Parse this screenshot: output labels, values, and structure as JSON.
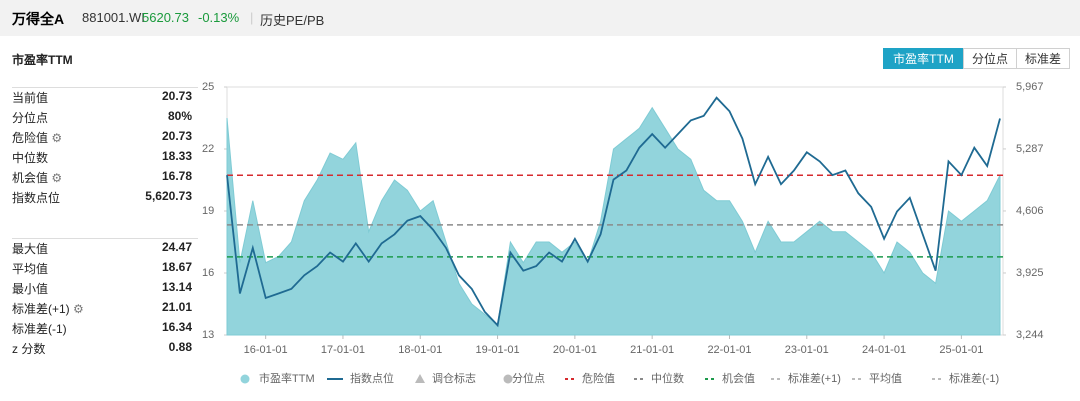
{
  "header": {
    "name": "万得全A",
    "code": "881001.WI",
    "price": "5620.73",
    "change": "-0.13%",
    "tab": "历史PE/PB"
  },
  "panel_title": "市盈率TTM",
  "tabs": [
    "市盈率TTM",
    "分位点",
    "标准差"
  ],
  "stats": [
    [
      [
        "当前值",
        "20.73"
      ],
      [
        "分位点",
        "80%"
      ],
      [
        "危险值",
        "20.73"
      ],
      [
        "中位数",
        "18.33"
      ],
      [
        "机会值",
        "16.78"
      ],
      [
        "指数点位",
        "5,620.73"
      ]
    ],
    [
      [
        "最大值",
        "24.47"
      ],
      [
        "平均值",
        "18.67"
      ],
      [
        "最小值",
        "13.14"
      ],
      [
        "标准差(+1)",
        "21.01"
      ],
      [
        "标准差(-1)",
        "16.34"
      ],
      [
        "z 分数",
        "0.88"
      ]
    ]
  ],
  "chart_data": {
    "type": "area-line",
    "x": [
      "15-07-01",
      "15-09-01",
      "15-11-01",
      "16-01-01",
      "16-03-01",
      "16-05-01",
      "16-07-01",
      "16-09-01",
      "16-11-01",
      "17-01-01",
      "17-03-01",
      "17-05-01",
      "17-07-01",
      "17-09-01",
      "17-11-01",
      "18-01-01",
      "18-03-01",
      "18-05-01",
      "18-07-01",
      "18-09-01",
      "18-11-01",
      "19-01-01",
      "19-03-01",
      "19-05-01",
      "19-07-01",
      "19-09-01",
      "19-11-01",
      "20-01-01",
      "20-03-01",
      "20-05-01",
      "20-07-01",
      "20-09-01",
      "20-11-01",
      "21-01-01",
      "21-03-01",
      "21-05-01",
      "21-07-01",
      "21-09-01",
      "21-11-01",
      "22-01-01",
      "22-03-01",
      "22-05-01",
      "22-07-01",
      "22-09-01",
      "22-11-01",
      "23-01-01",
      "23-03-01",
      "23-05-01",
      "23-07-01",
      "23-09-01",
      "23-11-01",
      "24-01-01",
      "24-03-01",
      "24-05-01",
      "24-07-01",
      "24-09-01",
      "24-11-01",
      "25-01-01",
      "25-03-01",
      "25-05-01",
      "25-07-01"
    ],
    "series": [
      {
        "name": "市盈率TTM",
        "color": "#92d4dc",
        "values": [
          23.5,
          16.5,
          19.5,
          16.5,
          16.8,
          17.5,
          19.5,
          20.5,
          21.8,
          21.5,
          22.3,
          18.0,
          19.5,
          20.5,
          20.0,
          19.0,
          19.5,
          17.5,
          15.5,
          14.5,
          14.0,
          13.5,
          17.5,
          16.5,
          17.5,
          17.5,
          17.0,
          17.5,
          16.5,
          18.5,
          22.0,
          22.5,
          23.0,
          24.0,
          23.0,
          22.0,
          21.5,
          20.0,
          19.5,
          19.5,
          18.5,
          17.0,
          18.5,
          17.5,
          17.5,
          18.0,
          18.5,
          18.0,
          18.0,
          17.5,
          17.0,
          16.0,
          17.5,
          17.0,
          16.0,
          15.5,
          19.0,
          18.5,
          19.0,
          19.5,
          20.73
        ]
      },
      {
        "name": "指数点位",
        "color": "#1f6a92",
        "axis": "y2",
        "values": [
          5000,
          3700,
          4200,
          3650,
          3700,
          3750,
          3900,
          4000,
          4150,
          4050,
          4250,
          4050,
          4250,
          4350,
          4500,
          4550,
          4400,
          4200,
          3900,
          3750,
          3500,
          3350,
          4150,
          3950,
          4000,
          4150,
          4050,
          4300,
          4050,
          4350,
          4950,
          5050,
          5300,
          5450,
          5300,
          5450,
          5600,
          5650,
          5850,
          5700,
          5400,
          4900,
          5200,
          4900,
          5050,
          5250,
          5150,
          5000,
          5050,
          4800,
          4650,
          4300,
          4600,
          4750,
          4350,
          3950,
          5150,
          5000,
          5300,
          5100,
          5620.73
        ]
      }
    ],
    "reference_lines": [
      {
        "name": "危险值",
        "value": 20.73,
        "color": "#d62a2e"
      },
      {
        "name": "中位数",
        "value": 18.33,
        "color": "#8a8a8a"
      },
      {
        "name": "机会值",
        "value": 16.78,
        "color": "#1d9a4c"
      }
    ],
    "inactive_legend": [
      "调仓标志",
      "分位点",
      "标准差(+1)",
      "平均值",
      "标准差(-1)"
    ],
    "xlim": [
      "15-07-01",
      "25-07-15"
    ],
    "xticks": [
      "16-01-01",
      "17-01-01",
      "18-01-01",
      "19-01-01",
      "20-01-01",
      "21-01-01",
      "22-01-01",
      "23-01-01",
      "24-01-01",
      "25-01-01"
    ],
    "ylim": [
      13,
      25
    ],
    "yticks": [
      13,
      16,
      19,
      22,
      25
    ],
    "y2lim": [
      3244,
      5967
    ],
    "y2ticks": [
      {
        "value": 3244,
        "label": "3,244"
      },
      {
        "value": 3925,
        "label": "3,925"
      },
      {
        "value": 4606,
        "label": "4,606"
      },
      {
        "value": 5287,
        "label": "5,287"
      },
      {
        "value": 5967,
        "label": "5,967"
      }
    ]
  }
}
